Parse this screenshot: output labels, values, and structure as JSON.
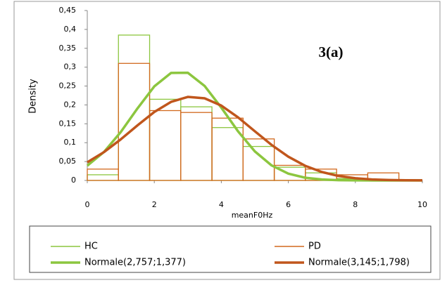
{
  "chart_data": {
    "type": "histogram",
    "annotation": "3(a)",
    "x_label": "meanF0Hz",
    "y_label": "Density",
    "bins": [
      0,
      0.93,
      1.86,
      2.79,
      3.72,
      4.65,
      5.58,
      6.51,
      7.44,
      8.37,
      9.3
    ],
    "series": [
      {
        "name": "HC",
        "style": "bars",
        "color": "#8cc63f",
        "values": [
          0.015,
          0.385,
          0.215,
          0.195,
          0.14,
          0.09,
          0.035,
          0.02,
          0.005,
          0
        ]
      },
      {
        "name": "PD",
        "style": "bars",
        "color": "#d2691e",
        "values": [
          0.03,
          0.31,
          0.185,
          0.18,
          0.165,
          0.11,
          0.04,
          0.03,
          0.015,
          0.02
        ]
      },
      {
        "name": "Normale(2,757;1,377)",
        "style": "curve",
        "color": "#8cc63f",
        "x": [
          0,
          0.5,
          1,
          1.5,
          2,
          2.5,
          3,
          3.5,
          4,
          4.5,
          5,
          5.5,
          6,
          6.5,
          7,
          7.5,
          8,
          8.5,
          9,
          9.5,
          10
        ],
        "values": [
          0.0391,
          0.0756,
          0.1284,
          0.191,
          0.2491,
          0.2847,
          0.2852,
          0.2504,
          0.1928,
          0.13,
          0.0769,
          0.0398,
          0.0181,
          0.0072,
          0.0025,
          0.0008,
          0.0002,
          0,
          0,
          0,
          0
        ]
      },
      {
        "name": "Normale(3,145;1,798)",
        "style": "curve",
        "color": "#c0561c",
        "x": [
          0,
          0.5,
          1,
          1.5,
          2,
          2.5,
          3,
          3.5,
          4,
          4.5,
          5,
          5.5,
          6,
          6.5,
          7,
          7.5,
          8,
          8.5,
          9,
          9.5,
          10
        ],
        "values": [
          0.048,
          0.0752,
          0.1089,
          0.146,
          0.1812,
          0.2081,
          0.2212,
          0.2176,
          0.1982,
          0.167,
          0.1303,
          0.0941,
          0.0629,
          0.0389,
          0.0223,
          0.0118,
          0.0058,
          0.0026,
          0.0011,
          0.0004,
          0.0002
        ]
      }
    ],
    "xlim": [
      0,
      10
    ],
    "xticks": [
      0,
      2,
      4,
      6,
      8,
      10
    ],
    "ylim": [
      0,
      0.45
    ],
    "yticks": [
      0,
      {
        "value": 0.05,
        "label": "0,05"
      },
      {
        "value": 0.1,
        "label": "0,1"
      },
      {
        "value": 0.15,
        "label": "0,15"
      },
      {
        "value": 0.2,
        "label": "0,2"
      },
      {
        "value": 0.25,
        "label": "0,25"
      },
      {
        "value": 0.3,
        "label": "0,3"
      },
      {
        "value": 0.35,
        "label": "0,35"
      },
      {
        "value": 0.4,
        "label": "0,4"
      },
      {
        "value": 0.45,
        "label": "0,45"
      }
    ]
  }
}
